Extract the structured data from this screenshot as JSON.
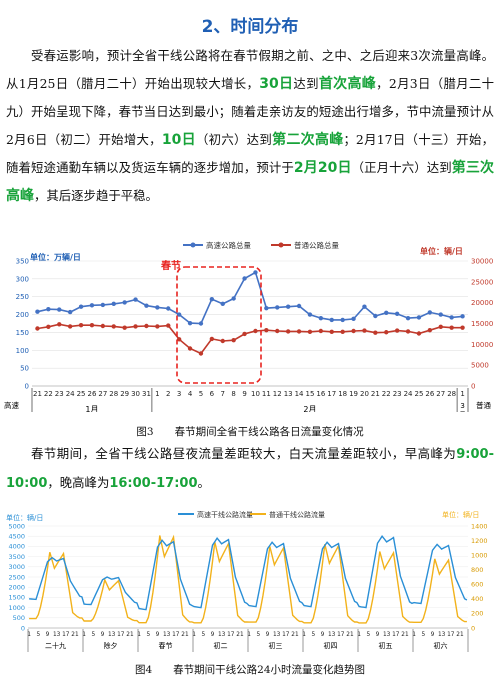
{
  "section_title": "2、时间分布",
  "para1": {
    "s1": "受春运影响，预计全省干线公路将在春节假期之前、之中、之后迎来3次流量高峰。从1月25日（腊月二十）开始出现较大增长，",
    "h1": "30日",
    "s2": "达到",
    "h2": "首次高峰",
    "s3": "，2月3日（腊月二十九）开始呈现下降，春节当日达到最小；随着走亲访友的短途出行增多，节中流量预计从2月6日（初二）开始增大，",
    "h3": "10日",
    "s4": "（初六）达到",
    "h4": "第二次高峰",
    "s5": "；2月17日（十三）开始，随着短途通勤车辆以及货运车辆的逐步增加，预计于",
    "h5": "2月20日",
    "s6": "（正月十六）达到",
    "h6": "第三次高峰",
    "s7": "，其后逐步趋于平稳。"
  },
  "para2": {
    "s1": "春节期间，全省干线公路昼夜流量差距较大，白天流量差距较小，早高峰为",
    "h1": "9:00-10:00",
    "s2": "，晚高峰为",
    "h2": "16:00-17:00",
    "s3": "。"
  },
  "fig3_caption": "图3　　春节期间全省干线公路各日流量变化情况",
  "fig4_caption": "图4　　春节期间干线公路24小时流量变化趋势图",
  "chart_data": [
    {
      "type": "line",
      "left_unit": "单位：万辆/日",
      "right_unit": "单位：辆/日",
      "annotation": "春节",
      "series": [
        {
          "name": "高速公路总量",
          "color": "#4472c4",
          "axis": "left",
          "values": [
            208,
            215,
            214,
            207,
            222,
            226,
            227,
            230,
            234,
            242,
            225,
            220,
            217,
            200,
            176,
            175,
            243,
            230,
            245,
            301,
            318,
            218,
            220,
            222,
            224,
            200,
            190,
            185,
            185,
            188,
            222,
            196,
            205,
            202,
            190,
            192,
            206,
            200,
            192,
            195
          ]
        },
        {
          "name": "普通公路总量",
          "color": "#c0392b",
          "axis": "right",
          "values": [
            13800,
            14200,
            14800,
            14300,
            14600,
            14600,
            14400,
            14300,
            14000,
            14300,
            14400,
            14300,
            14500,
            11200,
            9000,
            7800,
            11300,
            10800,
            11000,
            12500,
            13200,
            13400,
            13200,
            13100,
            13100,
            13000,
            13200,
            13000,
            13000,
            13200,
            13300,
            12800,
            12900,
            13300,
            13100,
            12600,
            13400,
            14200,
            14000,
            14000
          ]
        }
      ],
      "x_labels": [
        "21",
        "22",
        "23",
        "24",
        "25",
        "26",
        "27",
        "28",
        "29",
        "30",
        "31",
        "1",
        "2",
        "3",
        "4",
        "5",
        "6",
        "7",
        "8",
        "9",
        "10",
        "11",
        "12",
        "13",
        "14",
        "15",
        "16",
        "17",
        "18",
        "19",
        "20",
        "21",
        "22",
        "23",
        "24",
        "25",
        "26",
        "27",
        "28",
        "1"
      ],
      "x_axis_title_left": [
        "高速",
        "公路"
      ],
      "x_axis_title_right": [
        "普通",
        "公路"
      ],
      "month_labels": [
        "1月",
        "2月",
        "3月"
      ],
      "y_left": {
        "range": [
          0,
          350
        ],
        "ticks": [
          "0",
          "50",
          "100",
          "150",
          "200",
          "250",
          "300",
          "350"
        ]
      },
      "y_right": {
        "range": [
          0,
          30000
        ],
        "ticks": [
          "0",
          "5000",
          "10000",
          "15000",
          "20000",
          "25000",
          "30000"
        ]
      }
    },
    {
      "type": "line",
      "left_unit": "单位：辆/日",
      "right_unit": "单位：辆/日",
      "series": [
        {
          "name": "高速干线公路流量",
          "color": "#2a8fd6",
          "axis": "left"
        },
        {
          "name": "普通干线公路流量",
          "color": "#f2b21b",
          "axis": "right"
        }
      ],
      "hours_ticks": [
        "1",
        "5",
        "9",
        "13",
        "17",
        "21"
      ],
      "day_labels": [
        "二十九",
        "除夕",
        "春节",
        "初二",
        "初三",
        "初四",
        "初五",
        "初六"
      ],
      "days": [
        {
          "h_low": 1400,
          "h_peak": 3450,
          "n_low": 120,
          "n_peak": 1040
        },
        {
          "h_low": 1150,
          "h_peak": 2500,
          "n_low": 90,
          "n_peak": 660
        },
        {
          "h_low": 900,
          "h_peak": 4300,
          "n_low": 60,
          "n_peak": 1270
        },
        {
          "h_low": 1000,
          "h_peak": 4400,
          "n_low": 60,
          "n_peak": 1180
        },
        {
          "h_low": 1050,
          "h_peak": 4200,
          "n_low": 70,
          "n_peak": 1120
        },
        {
          "h_low": 1050,
          "h_peak": 4200,
          "n_low": 60,
          "n_peak": 1150
        },
        {
          "h_low": 1000,
          "h_peak": 4500,
          "n_low": 60,
          "n_peak": 1050
        },
        {
          "h_low": 1200,
          "h_peak": 4100,
          "n_low": 70,
          "n_peak": 950
        }
      ],
      "y_left": {
        "range": [
          0,
          5000
        ],
        "ticks": [
          "0",
          "500",
          "1000",
          "1500",
          "2000",
          "2500",
          "3000",
          "3500",
          "4000",
          "4500",
          "5000"
        ]
      },
      "y_right": {
        "range": [
          0,
          1400
        ],
        "ticks": [
          "0",
          "200",
          "400",
          "600",
          "800",
          "1000",
          "1200",
          "1400"
        ]
      }
    }
  ]
}
